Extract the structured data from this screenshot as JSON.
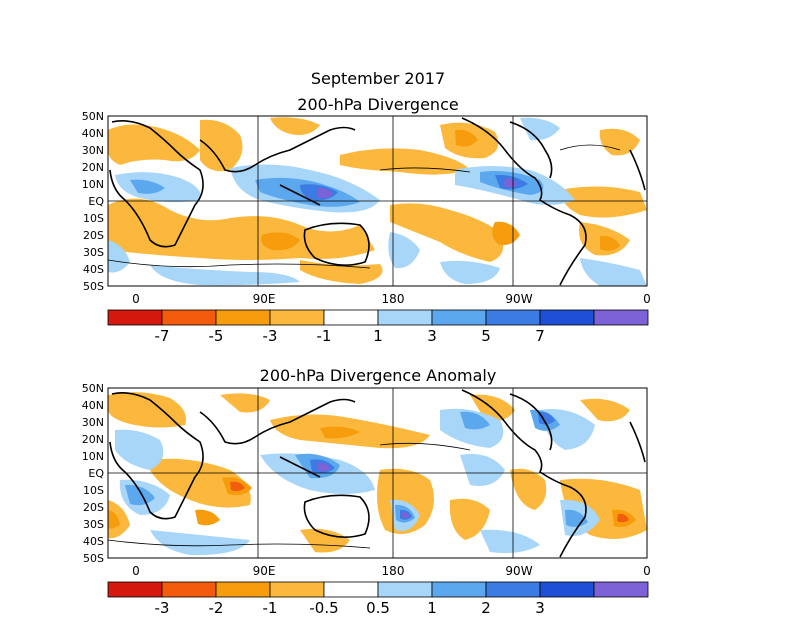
{
  "figure": {
    "title": "September 2017",
    "panels": [
      {
        "title": "200-hPa Divergence",
        "lat_labels": [
          "50N",
          "40N",
          "30N",
          "20N",
          "10N",
          "EQ",
          "10S",
          "20S",
          "30S",
          "40S",
          "50S"
        ],
        "lon_labels": [
          "0",
          "90E",
          "180",
          "90W",
          "0"
        ],
        "colorbar": {
          "colors": [
            "#d4180e",
            "#f25c0c",
            "#f79c0c",
            "#fbb83c",
            "#ffffff",
            "#a8d6f8",
            "#5ca8ee",
            "#3b7be3",
            "#1f4fd7",
            "#7c62d6"
          ],
          "labels": [
            "-7",
            "-5",
            "-3",
            "-1",
            "1",
            "3",
            "5",
            "7"
          ]
        }
      },
      {
        "title": "200-hPa Divergence Anomaly",
        "lat_labels": [
          "50N",
          "40N",
          "30N",
          "20N",
          "10N",
          "EQ",
          "10S",
          "20S",
          "30S",
          "40S",
          "50S"
        ],
        "lon_labels": [
          "0",
          "90E",
          "180",
          "90W",
          "0"
        ],
        "colorbar": {
          "colors": [
            "#d4180e",
            "#f25c0c",
            "#f79c0c",
            "#fbb83c",
            "#ffffff",
            "#a8d6f8",
            "#5ca8ee",
            "#3b7be3",
            "#1f4fd7",
            "#7c62d6"
          ],
          "labels": [
            "-3",
            "-2",
            "-1",
            "-0.5",
            "0.5",
            "1",
            "2",
            "3"
          ]
        }
      }
    ]
  }
}
